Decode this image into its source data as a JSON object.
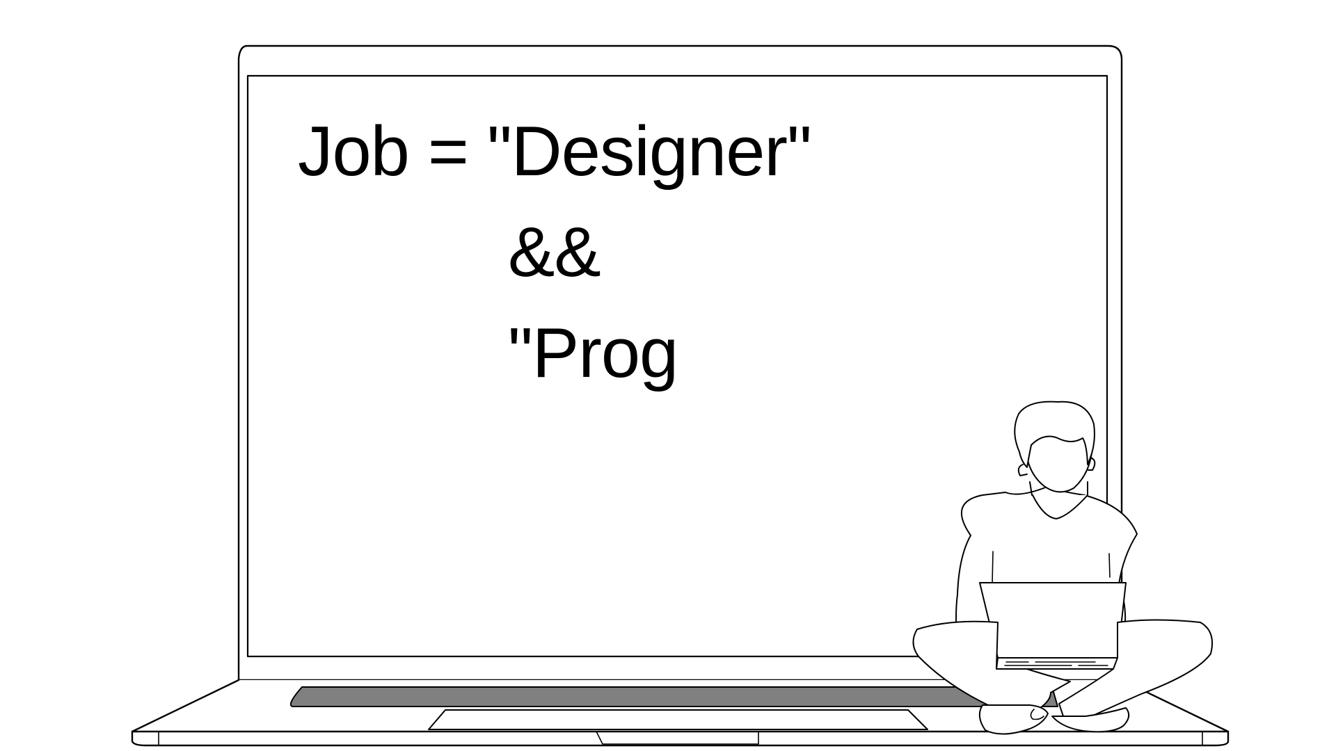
{
  "screen": {
    "lines": [
      "Job = \"Designer\"",
      "&&",
      "\"Prog"
    ]
  },
  "colors": {
    "background": "#ffffff",
    "stroke": "#000000",
    "trackpad_slot": "#808080"
  },
  "icons": {
    "laptop": "large-laptop-illustration",
    "person": "person-sitting-with-laptop-illustration"
  }
}
